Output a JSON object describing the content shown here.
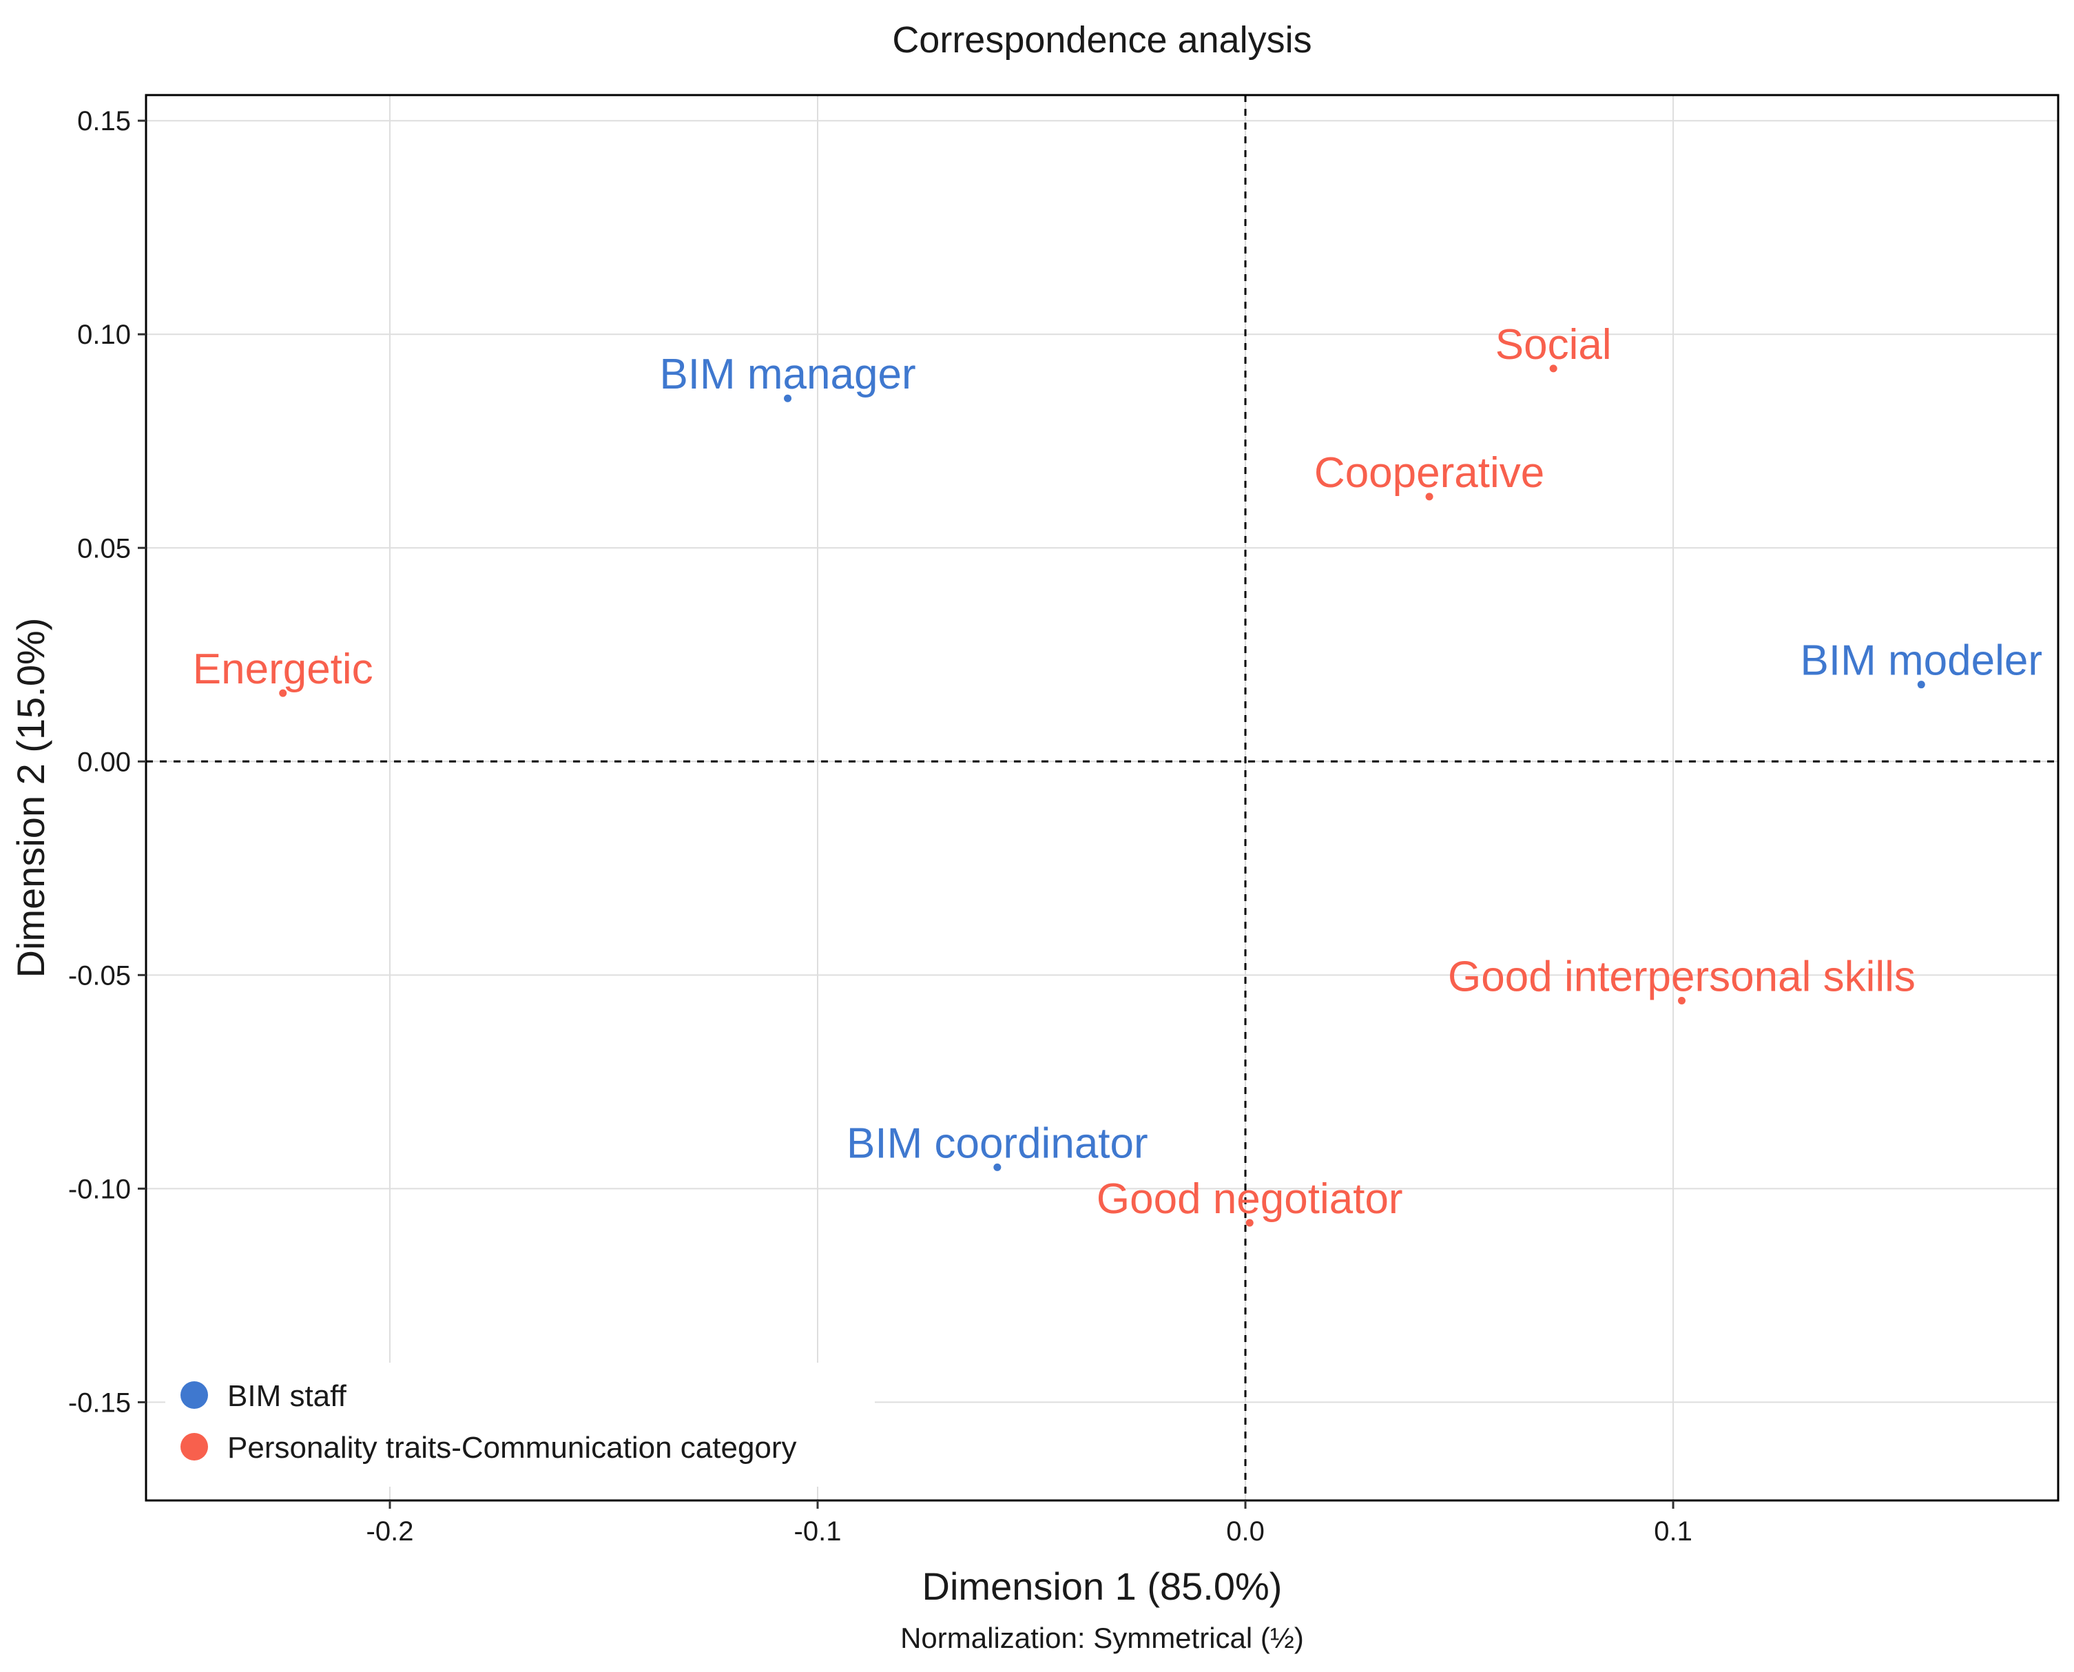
{
  "chart_data": {
    "type": "scatter",
    "title": "Correspondence analysis",
    "xlabel": "Dimension 1 (85.0%)",
    "ylabel": "Dimension 2 (15.0%)",
    "subtitle": "Normalization: Symmetrical (½)",
    "xlim": [
      -0.257,
      0.19
    ],
    "ylim": [
      -0.173,
      0.156
    ],
    "xticks": [
      {
        "value": -0.2,
        "label": "-0.2"
      },
      {
        "value": -0.1,
        "label": "-0.1"
      },
      {
        "value": 0.0,
        "label": "0.0"
      },
      {
        "value": 0.1,
        "label": "0.1"
      }
    ],
    "yticks": [
      {
        "value": 0.15,
        "label": "0.15"
      },
      {
        "value": 0.1,
        "label": "0.10"
      },
      {
        "value": 0.05,
        "label": "0.05"
      },
      {
        "value": 0.0,
        "label": "0.00"
      },
      {
        "value": -0.05,
        "label": "-0.05"
      },
      {
        "value": -0.1,
        "label": "-0.10"
      },
      {
        "value": -0.15,
        "label": "-0.15"
      }
    ],
    "grid": true,
    "reference_lines": {
      "x": 0,
      "y": 0
    },
    "legend_position": "bottom-left",
    "series": [
      {
        "name": "BIM staff",
        "color": "#3f78cf",
        "points": [
          {
            "label": "BIM manager",
            "x": -0.107,
            "y": 0.085
          },
          {
            "label": "BIM coordinator",
            "x": -0.058,
            "y": -0.095
          },
          {
            "label": "BIM modeler",
            "x": 0.158,
            "y": 0.018
          }
        ]
      },
      {
        "name": "Personality traits-Communication category",
        "color": "#f8604d",
        "points": [
          {
            "label": "Energetic",
            "x": -0.225,
            "y": 0.016
          },
          {
            "label": "Social",
            "x": 0.072,
            "y": 0.092
          },
          {
            "label": "Cooperative",
            "x": 0.043,
            "y": 0.062
          },
          {
            "label": "Good interpersonal skills",
            "x": 0.102,
            "y": -0.056
          },
          {
            "label": "Good negotiator",
            "x": 0.001,
            "y": -0.108
          }
        ]
      }
    ]
  }
}
